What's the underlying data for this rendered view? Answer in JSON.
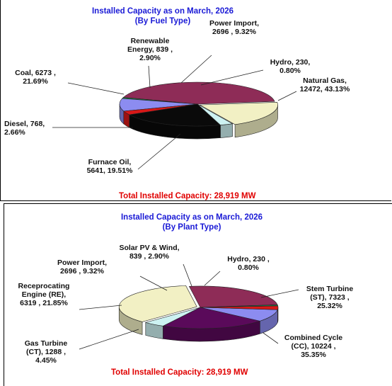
{
  "chart_data": [
    {
      "type": "pie",
      "title": "Installed Capacity as on March, 2026",
      "subtitle": "(By Fuel Type)",
      "total_label": "Total Installed Capacity: 28,919 MW",
      "slices": [
        {
          "name": "Natural Gas",
          "value": 12472,
          "percent": 43.13,
          "color": "#8e2c57",
          "label_lines": [
            "Natural Gas,",
            "12472, 43.13%"
          ],
          "anchor": "middle"
        },
        {
          "name": "Hydro",
          "value": 230,
          "percent": 0.8,
          "color": "#1c8c4a",
          "label_lines": [
            "Hydro, 230,",
            "0.80%"
          ],
          "anchor": "middle"
        },
        {
          "name": "Power Import",
          "value": 2696,
          "percent": 9.32,
          "color": "#8c8cf0",
          "label_lines": [
            "Power Import,",
            "2696 , 9.32%"
          ],
          "anchor": "middle"
        },
        {
          "name": "Renewable Energy",
          "value": 839,
          "percent": 2.9,
          "color": "#d81818",
          "label_lines": [
            "Renewable",
            "Energy, 839 ,",
            "2.90%"
          ],
          "anchor": "middle"
        },
        {
          "name": "Coal",
          "value": 6273,
          "percent": 21.69,
          "color": "#0a0a0a",
          "label_lines": [
            "Coal, 6273 ,",
            "21.69%"
          ],
          "anchor": "middle"
        },
        {
          "name": "Diesel",
          "value": 768,
          "percent": 2.66,
          "color": "#cdf2f2",
          "label_lines": [
            "Diesel, 768,",
            "2.66%"
          ],
          "anchor": "start"
        },
        {
          "name": "Furnace Oil",
          "value": 5641,
          "percent": 19.51,
          "color": "#f2f0c4",
          "label_lines": [
            "Furnace Oil,",
            "5641, 19.51%"
          ],
          "anchor": "middle"
        }
      ]
    },
    {
      "type": "pie",
      "title": "Installed Capacity as on March, 2026",
      "subtitle": "(By Plant Type)",
      "total_label": "Total Installed Capacity: 28,919 MW",
      "slices": [
        {
          "name": "Stem Turbine (ST)",
          "value": 7323,
          "percent": 25.32,
          "color": "#8e2c57",
          "label_lines": [
            "Stem Turbine",
            "(ST), 7323 ,",
            "25.32%"
          ],
          "anchor": "middle"
        },
        {
          "name": "Combined Cycle (CC)",
          "value": 10224,
          "percent": 35.35,
          "color": "#f2f0c4",
          "label_lines": [
            "Combined Cycle",
            "(CC), 10224 ,",
            "35.35%"
          ],
          "anchor": "middle"
        },
        {
          "name": "Gas Turbine (CT)",
          "value": 1288,
          "percent": 4.45,
          "color": "#cdf2f2",
          "label_lines": [
            "Gas Turbine",
            "(CT), 1288 ,",
            "4.45%"
          ],
          "anchor": "middle"
        },
        {
          "name": "Receprocating Engine (RE)",
          "value": 6319,
          "percent": 21.85,
          "color": "#5a0a5a",
          "label_lines": [
            "Receprocating",
            "Engine (RE),",
            "6319 , 21.85%"
          ],
          "anchor": "middle"
        },
        {
          "name": "Power Import",
          "value": 2696,
          "percent": 9.32,
          "color": "#8c8cf0",
          "label_lines": [
            "Power Import,",
            "2696 , 9.32%"
          ],
          "anchor": "middle"
        },
        {
          "name": "Solar PV & Wind",
          "value": 839,
          "percent": 2.9,
          "color": "#d81818",
          "label_lines": [
            "Solar PV & Wind,",
            "839 , 2.90%"
          ],
          "anchor": "middle"
        },
        {
          "name": "Hydro",
          "value": 230,
          "percent": 0.8,
          "color": "#1c8c4a",
          "label_lines": [
            "Hydro, 230 ,",
            "0.80%"
          ],
          "anchor": "middle"
        }
      ]
    }
  ]
}
